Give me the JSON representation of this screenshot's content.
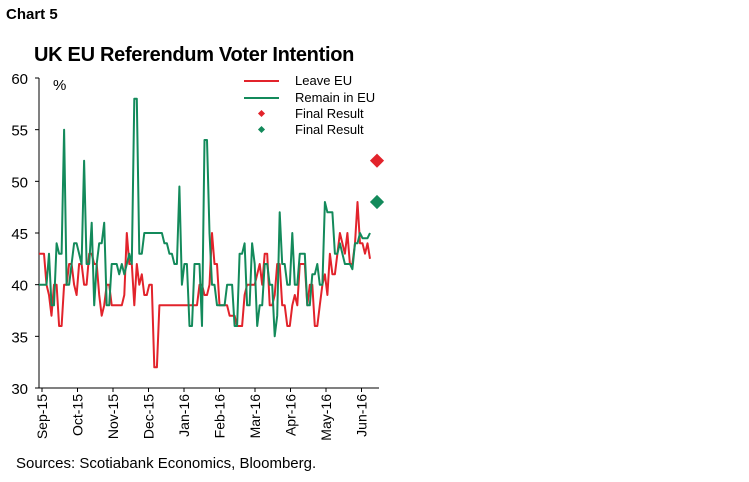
{
  "header": {
    "chart_label": "Chart 5"
  },
  "footer": {
    "source": "Sources: Scotiabank Economics, Bloomberg."
  },
  "chart_data": {
    "type": "line",
    "title": "UK EU Referendum Voter Intention",
    "ylabel": "%",
    "xlabel": "",
    "ylim": [
      30,
      60
    ],
    "yticks": [
      30,
      35,
      40,
      45,
      50,
      55,
      60
    ],
    "xtick_labels": [
      "Sep-15",
      "Oct-15",
      "Nov-15",
      "Dec-15",
      "Jan-16",
      "Feb-16",
      "Mar-16",
      "Apr-16",
      "May-16",
      "Jun-16"
    ],
    "grid": false,
    "legend_position": "top-right",
    "legend": [
      "Leave EU",
      "Remain in EU",
      "Final Result",
      "Final Result"
    ],
    "colors": {
      "leave": "#e2232b",
      "remain": "#138a5b"
    },
    "series": [
      {
        "name": "Leave EU",
        "color": "#e2232b",
        "values": [
          43,
          43,
          43,
          40,
          39,
          37,
          40,
          40,
          36,
          36,
          40,
          40,
          42,
          42,
          40,
          39,
          42,
          42,
          40,
          40,
          43,
          43,
          42,
          42,
          39,
          37,
          38,
          40,
          40,
          38,
          38,
          38,
          38,
          38,
          39,
          45,
          42,
          42,
          38,
          42,
          40,
          41,
          39,
          39,
          40,
          40,
          32,
          32,
          38,
          38,
          38,
          38,
          38,
          38,
          38,
          38,
          38,
          38,
          38,
          38,
          38,
          38,
          38,
          38,
          40,
          40,
          39,
          39,
          40,
          45,
          42,
          42,
          38,
          38,
          38,
          38,
          37,
          37,
          37,
          36,
          36,
          36,
          39,
          40,
          40,
          40,
          40,
          41,
          42,
          40,
          43,
          43,
          38,
          38,
          39,
          42,
          42,
          38,
          38,
          36,
          36,
          38,
          39,
          38,
          42,
          42,
          42,
          38,
          40,
          40,
          36,
          36,
          38,
          40,
          41,
          39,
          43,
          41,
          41,
          43,
          45,
          44,
          43,
          45,
          42,
          42,
          44,
          48,
          44,
          44,
          43,
          44,
          42.5
        ]
      },
      {
        "name": "Remain in EU",
        "color": "#138a5b",
        "values": [
          40,
          40,
          40,
          40,
          43,
          38,
          38,
          44,
          43,
          43,
          55,
          40,
          40,
          42,
          44,
          44,
          43,
          42,
          52,
          42,
          42,
          46,
          38,
          42,
          44,
          44,
          46,
          38,
          38,
          42,
          42,
          42,
          41,
          42,
          41,
          42,
          43,
          42,
          58,
          58,
          43,
          43,
          45,
          45,
          45,
          45,
          45,
          45,
          45,
          45,
          44,
          44,
          43,
          43,
          42,
          42,
          49.5,
          40,
          42,
          42,
          36,
          36,
          42,
          42,
          42,
          36,
          54,
          54,
          45,
          40,
          40,
          38,
          38,
          38,
          38,
          40,
          40,
          40,
          36,
          36,
          43,
          43,
          44,
          38,
          38,
          44,
          42,
          36,
          38,
          38,
          42,
          42,
          40,
          40,
          35,
          37,
          47,
          42,
          42,
          40,
          40,
          45,
          40,
          40,
          43,
          43,
          43,
          38,
          38,
          41,
          41,
          42,
          40,
          40,
          48,
          47,
          47,
          47,
          43,
          43,
          44,
          43,
          42,
          42,
          42,
          41.5,
          44,
          44,
          45,
          44.5,
          44.5,
          44.5,
          45
        ]
      },
      {
        "name": "Final Result",
        "type": "scatter",
        "color": "#e2232b",
        "value": 52
      },
      {
        "name": "Final Result",
        "type": "scatter",
        "color": "#138a5b",
        "value": 48
      }
    ]
  }
}
